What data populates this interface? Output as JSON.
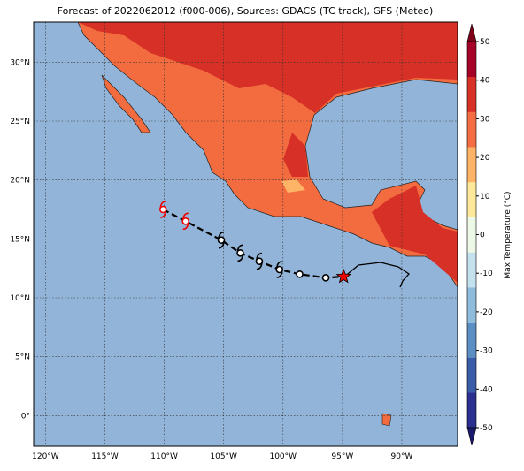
{
  "chart_data": {
    "type": "map",
    "title": "Forecast of 2022062012 (f000-006), Sources: GDACS (TC track), GFS (Meteo)",
    "xlim": [
      -121,
      -85.3
    ],
    "ylim": [
      -2.6,
      33.4
    ],
    "xticks": [
      {
        "value": -120,
        "label": "120°W"
      },
      {
        "value": -115,
        "label": "115°W"
      },
      {
        "value": -110,
        "label": "110°W"
      },
      {
        "value": -105,
        "label": "105°W"
      },
      {
        "value": -100,
        "label": "100°W"
      },
      {
        "value": -95,
        "label": "95°W"
      },
      {
        "value": -90,
        "label": "90°W"
      }
    ],
    "yticks": [
      {
        "value": 0,
        "label": "0°"
      },
      {
        "value": 5,
        "label": "5°N"
      },
      {
        "value": 10,
        "label": "10°N"
      },
      {
        "value": 15,
        "label": "15°N"
      },
      {
        "value": 20,
        "label": "20°N"
      },
      {
        "value": 25,
        "label": "25°N"
      },
      {
        "value": 30,
        "label": "30°N"
      }
    ],
    "grid": true,
    "track": {
      "x": [
        -110.1,
        -108.2,
        -105.2,
        -103.6,
        -102.0,
        -100.3,
        -98.6,
        -96.4,
        -94.9
      ],
      "y": [
        17.5,
        16.5,
        14.9,
        13.8,
        13.1,
        12.4,
        12.0,
        11.7,
        11.8
      ]
    },
    "colorbar": {
      "label": "Max Temperature (°C)",
      "clim": [
        -50,
        50
      ],
      "ticks": [
        -50,
        -40,
        -30,
        -20,
        -10,
        0,
        10,
        20,
        30,
        40,
        50
      ],
      "colors": [
        "#2b2f8f",
        "#3a5ca8",
        "#5b8ec2",
        "#8fbcdc",
        "#c4e2ee",
        "#eef8e6",
        "#fee89a",
        "#fdb466",
        "#f46d43",
        "#d73027",
        "#a50026"
      ],
      "low_color": "#1a1a6e",
      "high_color": "#80001a"
    }
  }
}
